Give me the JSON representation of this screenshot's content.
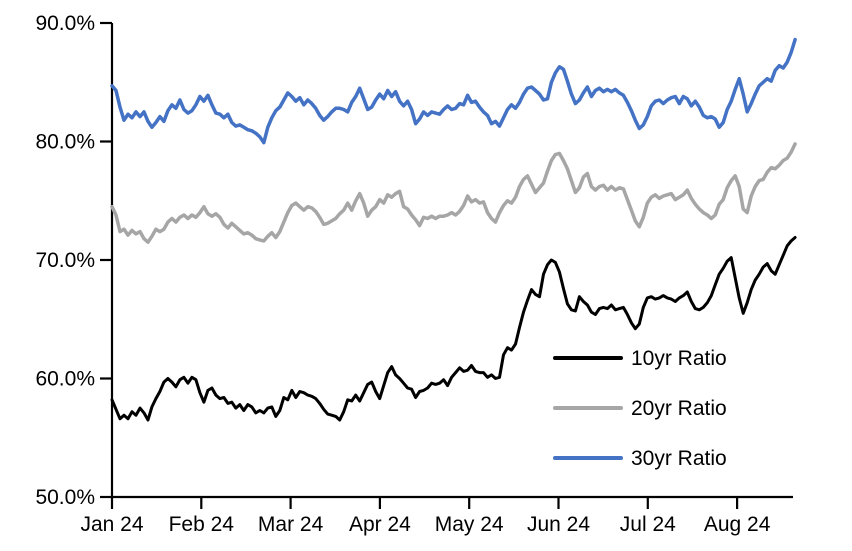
{
  "chart_data": {
    "type": "line",
    "title": "",
    "x_axis": {
      "unit": "months since Jan 2024",
      "tick_positions": [
        0,
        1,
        2,
        3,
        4,
        5,
        6,
        7
      ],
      "tick_labels": [
        "Jan 24",
        "Feb 24",
        "Mar 24",
        "Apr 24",
        "May 24",
        "Jun 24",
        "Jul 24",
        "Aug 24"
      ],
      "xlim": [
        0,
        7.63
      ]
    },
    "y_axis": {
      "unit": "percent",
      "tick_values": [
        50,
        60,
        70,
        80,
        90
      ],
      "tick_labels": [
        "50.0%",
        "60.0%",
        "70.0%",
        "80.0%",
        "90.0%"
      ],
      "ylim": [
        50,
        90
      ]
    },
    "grid": false,
    "legend_position": "inside-lower-right",
    "sampling": {
      "x_start": 0.0,
      "x_end": 7.65,
      "spacing": "uniform",
      "points_per_series": 172
    },
    "series": [
      {
        "name": "10yr Ratio",
        "color": "#000000",
        "values": [
          58.2,
          57.4,
          56.6,
          56.9,
          56.6,
          57.2,
          56.9,
          57.5,
          57.1,
          56.5,
          57.6,
          58.3,
          58.9,
          59.7,
          60.0,
          59.7,
          59.3,
          59.9,
          60.1,
          59.6,
          60.1,
          59.9,
          58.8,
          58.0,
          59.0,
          59.2,
          58.6,
          58.3,
          58.4,
          57.9,
          58.0,
          57.5,
          57.8,
          57.3,
          57.8,
          57.6,
          57.1,
          57.3,
          57.1,
          57.5,
          57.6,
          56.8,
          57.3,
          58.4,
          58.2,
          59.0,
          58.4,
          58.9,
          58.8,
          58.6,
          58.5,
          58.3,
          57.9,
          57.4,
          57.0,
          56.9,
          56.8,
          56.5,
          57.2,
          58.2,
          58.1,
          58.6,
          58.1,
          58.8,
          59.5,
          59.7,
          58.9,
          58.3,
          59.4,
          60.5,
          61.0,
          60.3,
          60.0,
          59.6,
          59.2,
          59.1,
          58.4,
          58.9,
          59.0,
          59.2,
          59.6,
          59.5,
          59.6,
          59.9,
          59.4,
          60.1,
          60.5,
          60.9,
          60.6,
          60.7,
          61.1,
          60.6,
          60.5,
          60.5,
          60.1,
          60.3,
          60.0,
          60.1,
          62.0,
          62.6,
          62.4,
          62.9,
          64.3,
          65.6,
          66.6,
          67.5,
          67.1,
          66.9,
          68.8,
          69.6,
          70.0,
          69.8,
          69.0,
          67.6,
          66.3,
          65.8,
          65.7,
          66.9,
          66.5,
          66.2,
          65.6,
          65.4,
          65.9,
          66.0,
          65.9,
          66.2,
          65.8,
          65.9,
          66.0,
          65.4,
          64.7,
          64.2,
          64.6,
          66.0,
          66.8,
          66.9,
          66.7,
          66.8,
          67.0,
          66.8,
          66.7,
          66.5,
          66.8,
          67.0,
          67.3,
          66.5,
          65.9,
          65.8,
          66.0,
          66.4,
          67.0,
          67.9,
          68.8,
          69.3,
          69.9,
          70.2,
          68.5,
          66.8,
          65.5,
          66.4,
          67.5,
          68.3,
          68.8,
          69.4,
          69.7,
          69.1,
          68.8,
          69.6,
          70.4,
          71.2,
          71.6,
          71.9
        ]
      },
      {
        "name": "20yr Ratio",
        "color": "#A6A6A6",
        "values": [
          74.5,
          73.8,
          72.4,
          72.6,
          72.1,
          72.5,
          72.2,
          72.4,
          71.8,
          71.5,
          72.0,
          72.6,
          72.4,
          72.6,
          73.2,
          73.5,
          73.2,
          73.6,
          73.8,
          73.5,
          73.8,
          73.6,
          74.0,
          74.5,
          73.9,
          73.7,
          73.9,
          73.6,
          73.0,
          72.7,
          73.1,
          72.8,
          72.5,
          72.2,
          72.3,
          72.1,
          71.8,
          71.7,
          71.6,
          72.0,
          72.3,
          71.9,
          72.4,
          73.2,
          74.0,
          74.6,
          74.8,
          74.5,
          74.2,
          74.5,
          74.4,
          74.1,
          73.6,
          73.0,
          73.1,
          73.3,
          73.5,
          73.9,
          74.2,
          74.8,
          74.2,
          75.0,
          75.6,
          74.8,
          73.7,
          74.2,
          74.5,
          75.1,
          74.8,
          75.5,
          75.3,
          75.6,
          75.8,
          74.5,
          74.3,
          73.8,
          73.4,
          72.9,
          73.6,
          73.5,
          73.7,
          73.5,
          73.7,
          73.7,
          73.8,
          74.0,
          73.8,
          74.1,
          74.6,
          75.4,
          74.9,
          75.1,
          74.8,
          74.9,
          74.0,
          73.5,
          73.2,
          74.0,
          74.6,
          75.0,
          74.8,
          75.3,
          76.2,
          76.8,
          77.1,
          76.4,
          75.7,
          76.1,
          76.5,
          77.5,
          78.4,
          78.9,
          79.0,
          78.4,
          77.7,
          76.7,
          75.7,
          76.1,
          77.0,
          77.3,
          76.2,
          75.9,
          76.2,
          76.3,
          75.9,
          76.2,
          75.9,
          76.1,
          76.0,
          75.1,
          74.2,
          73.3,
          72.8,
          73.6,
          74.8,
          75.3,
          75.5,
          75.2,
          75.4,
          75.5,
          75.6,
          75.1,
          75.3,
          75.5,
          75.9,
          75.2,
          74.7,
          74.3,
          74.0,
          73.8,
          73.5,
          73.8,
          74.7,
          75.1,
          76.1,
          76.7,
          77.1,
          76.2,
          74.3,
          74.0,
          75.4,
          76.2,
          76.7,
          76.8,
          77.4,
          77.8,
          77.7,
          78.0,
          78.4,
          78.6,
          79.1,
          79.8
        ]
      },
      {
        "name": "30yr Ratio",
        "color": "#4472C4",
        "values": [
          84.7,
          84.3,
          82.9,
          81.8,
          82.3,
          82.0,
          82.5,
          82.1,
          82.5,
          81.7,
          81.2,
          81.6,
          82.1,
          81.7,
          82.6,
          83.1,
          82.8,
          83.5,
          82.7,
          82.4,
          82.6,
          83.1,
          83.8,
          83.4,
          83.9,
          83.1,
          82.4,
          82.3,
          82.0,
          82.3,
          81.6,
          81.3,
          81.4,
          81.2,
          81.0,
          80.9,
          80.7,
          80.4,
          79.9,
          81.2,
          82.0,
          82.6,
          82.9,
          83.5,
          84.1,
          83.8,
          83.4,
          83.7,
          83.1,
          83.5,
          83.2,
          82.8,
          82.2,
          81.8,
          82.1,
          82.5,
          82.8,
          82.8,
          82.7,
          82.5,
          83.3,
          83.8,
          84.5,
          83.6,
          82.7,
          82.9,
          83.5,
          84.0,
          83.6,
          84.3,
          83.8,
          84.2,
          83.4,
          83.0,
          83.4,
          82.7,
          81.5,
          81.9,
          82.5,
          82.2,
          82.5,
          82.4,
          82.3,
          82.7,
          83.0,
          82.7,
          82.8,
          83.2,
          83.1,
          83.9,
          83.3,
          83.4,
          82.9,
          82.5,
          82.2,
          81.5,
          81.7,
          81.3,
          82.0,
          82.7,
          83.1,
          82.8,
          83.3,
          84.0,
          84.5,
          84.6,
          84.3,
          84.0,
          83.5,
          83.6,
          85.0,
          85.8,
          86.3,
          86.1,
          85.1,
          84.0,
          83.2,
          83.5,
          84.1,
          84.6,
          83.8,
          84.3,
          84.5,
          84.2,
          84.4,
          84.2,
          84.4,
          84.1,
          83.9,
          83.3,
          82.6,
          81.8,
          81.1,
          81.4,
          82.1,
          83.0,
          83.4,
          83.5,
          83.2,
          83.5,
          83.7,
          83.8,
          83.2,
          83.8,
          83.6,
          83.0,
          83.4,
          82.9,
          82.2,
          82.0,
          82.1,
          81.9,
          81.2,
          81.6,
          82.7,
          83.4,
          84.4,
          85.3,
          84.0,
          82.5,
          83.2,
          84.0,
          84.7,
          85.0,
          85.3,
          85.1,
          86.0,
          86.4,
          86.2,
          86.7,
          87.5,
          88.6
        ]
      }
    ]
  }
}
